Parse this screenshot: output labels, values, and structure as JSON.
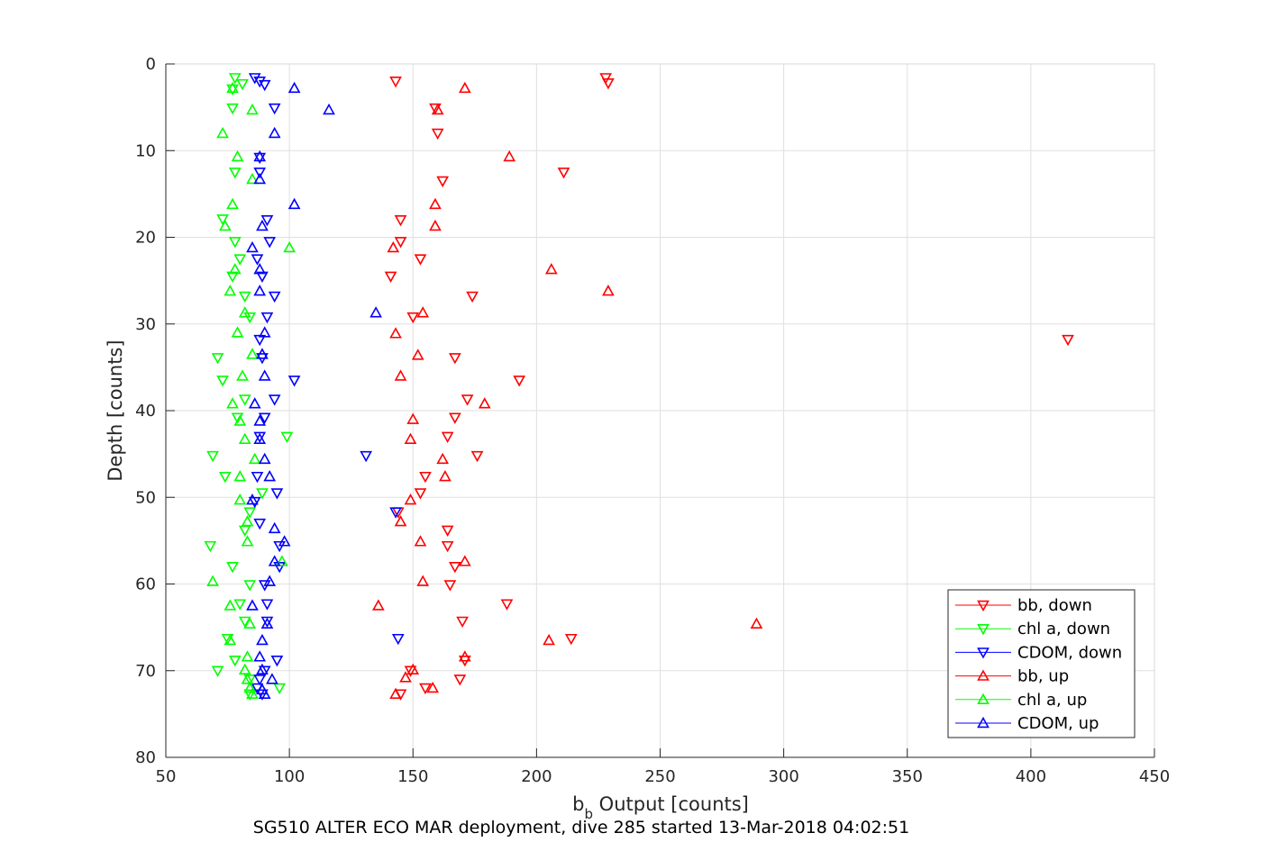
{
  "chart_data": {
    "type": "scatter",
    "title": "",
    "xlabel_main": "b",
    "xlabel_sub": "b",
    "xlabel_rest": " Output [counts]",
    "ylabel": "Depth [counts]",
    "caption": "SG510 ALTER ECO MAR deployment, dive 285 started 13-Mar-2018 04:02:51",
    "xlim": [
      50,
      450
    ],
    "ylim": [
      0,
      80
    ],
    "y_reversed": true,
    "xticks": [
      50,
      100,
      150,
      200,
      250,
      300,
      350,
      400,
      450
    ],
    "yticks": [
      0,
      10,
      20,
      30,
      40,
      50,
      60,
      70,
      80
    ],
    "grid": true,
    "legend_position": "bottom-right",
    "series": [
      {
        "name": "bb, down",
        "color": "#ff0000",
        "marker": "triangle-down",
        "points": [
          [
            228,
            1.6
          ],
          [
            229,
            2.2
          ],
          [
            143,
            2
          ],
          [
            159,
            5.1
          ],
          [
            160,
            8
          ],
          [
            211,
            12.5
          ],
          [
            162,
            13.5
          ],
          [
            145,
            18
          ],
          [
            145,
            20.5
          ],
          [
            153,
            22.5
          ],
          [
            141,
            24.5
          ],
          [
            174,
            26.8
          ],
          [
            150,
            29.2
          ],
          [
            415,
            31.8
          ],
          [
            167,
            33.9
          ],
          [
            193,
            36.5
          ],
          [
            172,
            38.7
          ],
          [
            167,
            40.8
          ],
          [
            164,
            43
          ],
          [
            176,
            45.2
          ],
          [
            155,
            47.6
          ],
          [
            153,
            49.5
          ],
          [
            144,
            51.7
          ],
          [
            164,
            53.8
          ],
          [
            164,
            55.6
          ],
          [
            167,
            58
          ],
          [
            165,
            60.1
          ],
          [
            188,
            62.3
          ],
          [
            170,
            64.3
          ],
          [
            214,
            66.3
          ],
          [
            171,
            68.8
          ],
          [
            149,
            70
          ],
          [
            169,
            71
          ],
          [
            155,
            72
          ],
          [
            145,
            72.7
          ]
        ]
      },
      {
        "name": "chl a, down",
        "color": "#00ff00",
        "marker": "triangle-down",
        "points": [
          [
            78,
            1.6
          ],
          [
            81,
            2.3
          ],
          [
            77,
            2.9
          ],
          [
            77,
            5.1
          ],
          [
            78,
            12.5
          ],
          [
            73,
            17.9
          ],
          [
            78,
            20.5
          ],
          [
            80,
            22.5
          ],
          [
            77,
            24.5
          ],
          [
            82,
            26.8
          ],
          [
            84,
            29.2
          ],
          [
            71,
            33.9
          ],
          [
            73,
            36.5
          ],
          [
            82,
            38.7
          ],
          [
            79,
            40.8
          ],
          [
            99,
            43
          ],
          [
            69,
            45.2
          ],
          [
            74,
            47.6
          ],
          [
            89,
            49.5
          ],
          [
            84,
            51.7
          ],
          [
            82,
            53.8
          ],
          [
            68,
            55.6
          ],
          [
            77,
            58
          ],
          [
            84,
            60.1
          ],
          [
            80,
            62.3
          ],
          [
            82,
            64.3
          ],
          [
            75,
            66.3
          ],
          [
            78,
            68.8
          ],
          [
            71,
            70
          ],
          [
            84,
            71
          ],
          [
            96,
            72
          ],
          [
            84,
            72.7
          ]
        ]
      },
      {
        "name": "CDOM, down",
        "color": "#0000ff",
        "marker": "triangle-down",
        "points": [
          [
            86,
            1.6
          ],
          [
            88,
            2
          ],
          [
            90,
            2.4
          ],
          [
            94,
            5.1
          ],
          [
            88,
            10.8
          ],
          [
            88,
            12.5
          ],
          [
            91,
            18
          ],
          [
            92,
            20.5
          ],
          [
            87,
            22.5
          ],
          [
            89,
            24.5
          ],
          [
            94,
            26.8
          ],
          [
            91,
            29.2
          ],
          [
            88,
            31.8
          ],
          [
            89,
            33.9
          ],
          [
            102,
            36.5
          ],
          [
            94,
            38.7
          ],
          [
            90,
            40.8
          ],
          [
            88,
            43
          ],
          [
            131,
            45.2
          ],
          [
            87,
            47.6
          ],
          [
            95,
            49.5
          ],
          [
            86,
            50.5
          ],
          [
            143,
            51.7
          ],
          [
            88,
            53
          ],
          [
            96,
            55.6
          ],
          [
            96,
            58
          ],
          [
            90,
            60.1
          ],
          [
            91,
            62.3
          ],
          [
            91,
            64.3
          ],
          [
            144,
            66.3
          ],
          [
            95,
            68.8
          ],
          [
            90,
            70
          ],
          [
            88,
            71
          ],
          [
            87,
            72
          ],
          [
            89,
            72.7
          ]
        ]
      },
      {
        "name": "bb, up",
        "color": "#ff0000",
        "marker": "triangle-up",
        "points": [
          [
            171,
            2.8
          ],
          [
            160,
            5.3
          ],
          [
            189,
            10.7
          ],
          [
            159,
            16.2
          ],
          [
            159,
            18.7
          ],
          [
            142,
            21.2
          ],
          [
            206,
            23.7
          ],
          [
            229,
            26.2
          ],
          [
            154,
            28.7
          ],
          [
            143,
            31.1
          ],
          [
            152,
            33.6
          ],
          [
            145,
            36
          ],
          [
            179,
            39.2
          ],
          [
            150,
            41
          ],
          [
            149,
            43.3
          ],
          [
            162,
            45.6
          ],
          [
            163,
            47.6
          ],
          [
            149,
            50.3
          ],
          [
            145,
            52.8
          ],
          [
            153,
            55.1
          ],
          [
            171,
            57.4
          ],
          [
            154,
            59.7
          ],
          [
            136,
            62.5
          ],
          [
            289,
            64.6
          ],
          [
            205,
            66.5
          ],
          [
            171,
            68.4
          ],
          [
            150,
            69.9
          ],
          [
            147,
            70.8
          ],
          [
            158,
            72
          ],
          [
            143,
            72.7
          ]
        ]
      },
      {
        "name": "chl a, up",
        "color": "#00ff00",
        "marker": "triangle-up",
        "points": [
          [
            77,
            2.8
          ],
          [
            85,
            5.3
          ],
          [
            73,
            8
          ],
          [
            79,
            10.7
          ],
          [
            85,
            13.3
          ],
          [
            77,
            16.2
          ],
          [
            74,
            18.7
          ],
          [
            100,
            21.2
          ],
          [
            78,
            23.7
          ],
          [
            76,
            26.2
          ],
          [
            82,
            28.7
          ],
          [
            79,
            31
          ],
          [
            85,
            33.5
          ],
          [
            81,
            36
          ],
          [
            77,
            39.2
          ],
          [
            80,
            41.2
          ],
          [
            82,
            43.3
          ],
          [
            86,
            45.6
          ],
          [
            80,
            47.6
          ],
          [
            80,
            50.3
          ],
          [
            83,
            52.8
          ],
          [
            83,
            55.1
          ],
          [
            97,
            57.4
          ],
          [
            69,
            59.7
          ],
          [
            76,
            62.5
          ],
          [
            84,
            64.6
          ],
          [
            76,
            66.5
          ],
          [
            83,
            68.4
          ],
          [
            82,
            69.9
          ],
          [
            83,
            71
          ],
          [
            84,
            72
          ],
          [
            85,
            72.7
          ]
        ]
      },
      {
        "name": "CDOM, up",
        "color": "#0000ff",
        "marker": "triangle-up",
        "points": [
          [
            102,
            2.8
          ],
          [
            116,
            5.3
          ],
          [
            94,
            8
          ],
          [
            88,
            10.7
          ],
          [
            88,
            13.3
          ],
          [
            102,
            16.2
          ],
          [
            89,
            18.7
          ],
          [
            85,
            21.2
          ],
          [
            88,
            23.7
          ],
          [
            88,
            26.2
          ],
          [
            135,
            28.7
          ],
          [
            90,
            31
          ],
          [
            89,
            33.5
          ],
          [
            90,
            36
          ],
          [
            86,
            39.2
          ],
          [
            88,
            41.2
          ],
          [
            88,
            43.3
          ],
          [
            90,
            45.6
          ],
          [
            92,
            47.6
          ],
          [
            85,
            50.3
          ],
          [
            94,
            53.6
          ],
          [
            98,
            55.1
          ],
          [
            94,
            57.4
          ],
          [
            92,
            59.7
          ],
          [
            85,
            62.5
          ],
          [
            91,
            64.6
          ],
          [
            89,
            66.5
          ],
          [
            88,
            68.4
          ],
          [
            89,
            69.9
          ],
          [
            93,
            71
          ],
          [
            89,
            72.2
          ],
          [
            90,
            72.7
          ]
        ]
      }
    ]
  }
}
